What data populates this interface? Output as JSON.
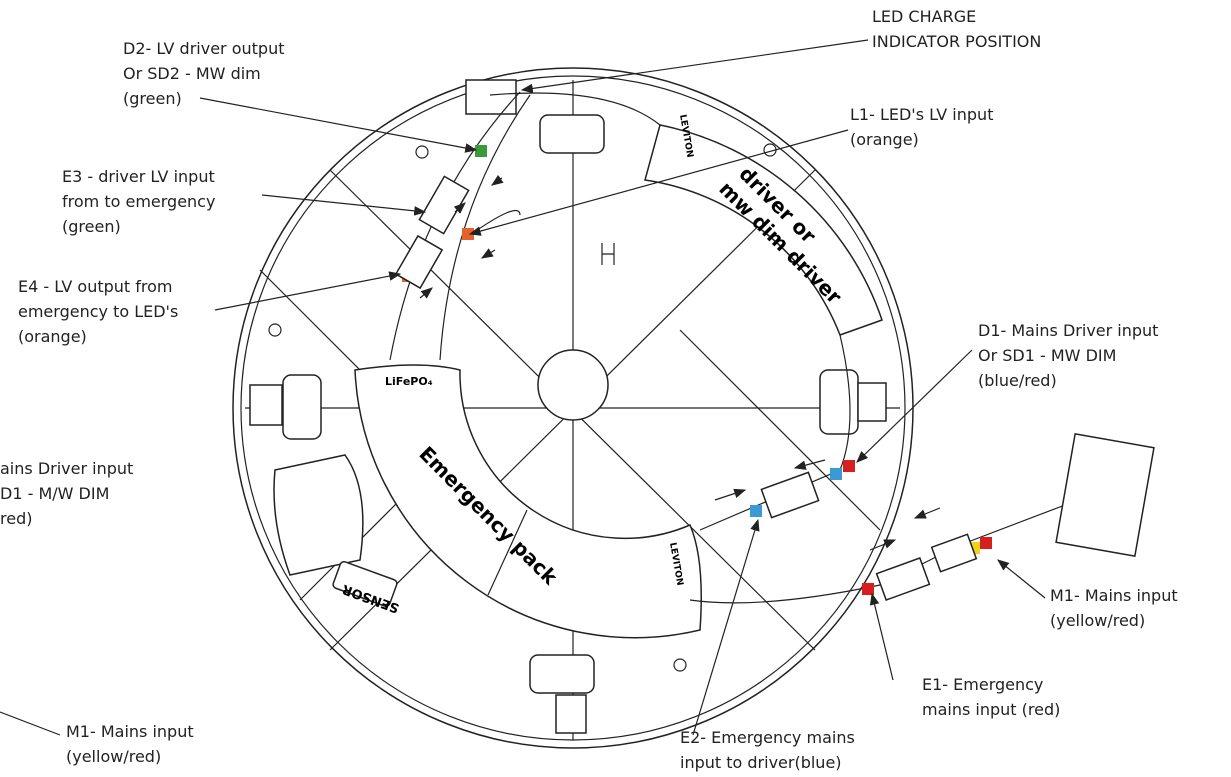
{
  "callouts": [
    {
      "lines": [
        "LED CHARGE",
        "INDICATOR POSITION"
      ]
    },
    {
      "lines": [
        "D2- LV driver output",
        "Or SD2 - MW dim",
        "(green)"
      ]
    },
    {
      "lines": [
        "L1-  LED's LV  input",
        "(orange)"
      ]
    },
    {
      "lines": [
        "E3 - driver LV input",
        "from to emergency",
        "(green)"
      ]
    },
    {
      "lines": [
        "E4 - LV output from",
        "emergency to LED's",
        "(orange)"
      ]
    },
    {
      "lines": [
        "D1- Mains Driver input",
        "Or SD1 - MW DIM",
        "(blue/red)"
      ]
    },
    {
      "lines": [
        "ains Driver input",
        "D1 - M/W DIM",
        "red)"
      ]
    },
    {
      "lines": [
        "M1- Mains input",
        "(yellow/red)"
      ]
    },
    {
      "lines": [
        "E1- Emergency",
        "mains input (red)"
      ]
    },
    {
      "lines": [
        "E2- Emergency mains",
        "input to driver(blue)"
      ]
    },
    {
      "lines": [
        "M1- Mains input",
        "(yellow/red)"
      ]
    }
  ],
  "device_labels": {
    "driver": [
      "driver or",
      "mw dim driver"
    ],
    "emergency_pack": "Emergency pack",
    "battery": "LiFePO₄",
    "sensor": "SENSOR",
    "brand": "LEVITON"
  }
}
